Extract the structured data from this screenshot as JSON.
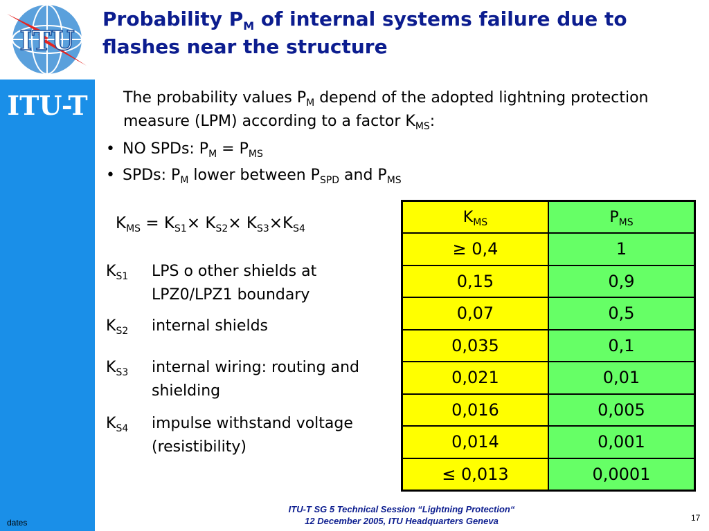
{
  "sidebar": {
    "logo_text": "ITU",
    "brand": "ITU-T",
    "dates": "dates"
  },
  "title": {
    "part1": "Probability P",
    "sub": "M",
    "part2": " of internal systems failure due to flashes near the structure"
  },
  "intro": {
    "t1": "The probability values P",
    "s1": "M",
    "t2": " depend of the adopted lightning protection measure (LPM) according to a factor K",
    "s2": "MS",
    "t3": ":"
  },
  "bullets": [
    {
      "dot": "•",
      "t1": "NO SPDs: P",
      "s1": "M",
      "t2": " = P",
      "s2": "MS",
      "t3": "",
      "s3": ""
    },
    {
      "dot": "•",
      "t1": "SPDs: P",
      "s1": "M",
      "t2": " lower between P",
      "s2": "SPD",
      "t3": " and P",
      "s3": "MS"
    }
  ],
  "formula": {
    "k": "K",
    "ms": "MS",
    "eq": " = K",
    "s1": "S1",
    "x1": "× K",
    "s2": "S2",
    "x2": "× K",
    "s3": "S3",
    "x3": "×K",
    "s4": "S4"
  },
  "definitions": [
    {
      "sym": "K",
      "sub": "S1",
      "text": "LPS o other shields at LPZ0/LPZ1 boundary"
    },
    {
      "sym": "K",
      "sub": "S2",
      "text": "internal shields"
    },
    {
      "sym": "K",
      "sub": "S3",
      "text": "internal wiring:  routing and shielding"
    },
    {
      "sym": "K",
      "sub": "S4",
      "text": "impulse withstand voltage (resistibility)"
    }
  ],
  "table": {
    "head_k": "K",
    "head_k_sub": "MS",
    "head_p": "P",
    "head_p_sub": "MS",
    "rows": [
      {
        "k": "≥ 0,4",
        "p": "1"
      },
      {
        "k": "0,15",
        "p": "0,9"
      },
      {
        "k": "0,07",
        "p": "0,5"
      },
      {
        "k": "0,035",
        "p": "0,1"
      },
      {
        "k": "0,021",
        "p": "0,01"
      },
      {
        "k": "0,016",
        "p": "0,005"
      },
      {
        "k": "0,014",
        "p": "0,001"
      },
      {
        "k": "≤ 0,013",
        "p": "0,0001"
      }
    ]
  },
  "footer": {
    "line1": "ITU-T SG 5 Technical Session “Lightning Protection“",
    "line2": "12 December 2005, ITU Headquarters Geneva",
    "page": "17"
  },
  "colors": {
    "title": "#0c1d8f",
    "sidebar": "#1a8fe8",
    "k_column": "#ffff00",
    "p_column": "#66ff66"
  }
}
